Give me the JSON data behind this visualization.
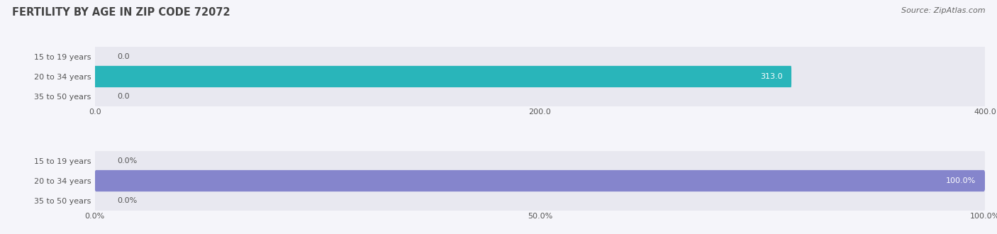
{
  "title": "FERTILITY BY AGE IN ZIP CODE 72072",
  "source": "Source: ZipAtlas.com",
  "categories": [
    "15 to 19 years",
    "20 to 34 years",
    "35 to 50 years"
  ],
  "values_abs": [
    0.0,
    313.0,
    0.0
  ],
  "values_pct": [
    0.0,
    100.0,
    0.0
  ],
  "xlim_abs": [
    0,
    400
  ],
  "xlim_pct": [
    0,
    100
  ],
  "xticks_abs": [
    0.0,
    200.0,
    400.0
  ],
  "xticks_pct": [
    0.0,
    50.0,
    100.0
  ],
  "xtick_labels_abs": [
    "0.0",
    "200.0",
    "400.0"
  ],
  "xtick_labels_pct": [
    "0.0%",
    "50.0%",
    "100.0%"
  ],
  "bar_color_abs": "#29b5ba",
  "bar_color_pct": "#8585cc",
  "bar_bg_color": "#e8e8f0",
  "label_color": "#555555",
  "label_inside_color": "#ffffff",
  "title_color": "#444444",
  "source_color": "#666666",
  "title_fontsize": 10.5,
  "source_fontsize": 8,
  "tick_fontsize": 8,
  "bar_label_fontsize": 8,
  "category_fontsize": 8,
  "bar_height": 0.72,
  "background_color": "#f5f5fa"
}
